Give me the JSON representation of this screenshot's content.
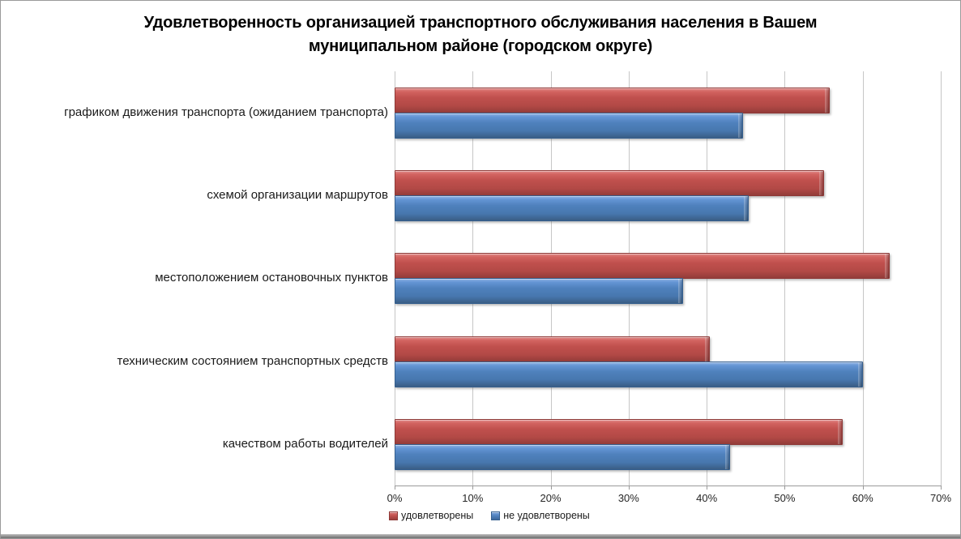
{
  "title": "Удовлетворенность организацией транспортного обслуживания населения в Вашем муниципальном районе (городском округе)",
  "chart_data": {
    "type": "bar",
    "orientation": "horizontal",
    "title": "Удовлетворенность организацией транспортного обслуживания населения в Вашем муниципальном районе (городском округе)",
    "categories": [
      "графиком движения транспорта (ожиданием транспорта)",
      "схемой организации маршрутов",
      "местоположением остановочных пунктов",
      "техническим состоянием транспортных средств",
      "качеством работы водителей"
    ],
    "series": [
      {
        "name": "удовлетворены",
        "color": "#c0504d",
        "values": [
          55.6,
          54.8,
          63.2,
          40.2,
          57.2
        ]
      },
      {
        "name": "не удовлетворены",
        "color": "#4f81bd",
        "values": [
          44.4,
          45.2,
          36.8,
          59.8,
          42.8
        ]
      }
    ],
    "xlabel": "",
    "ylabel": "",
    "xlim": [
      0,
      70
    ],
    "x_ticks": [
      "0%",
      "10%",
      "20%",
      "30%",
      "40%",
      "50%",
      "60%",
      "70%"
    ],
    "grid": "vertical-only",
    "legend_position": "bottom-left",
    "bar_style": "3d-bevel"
  }
}
